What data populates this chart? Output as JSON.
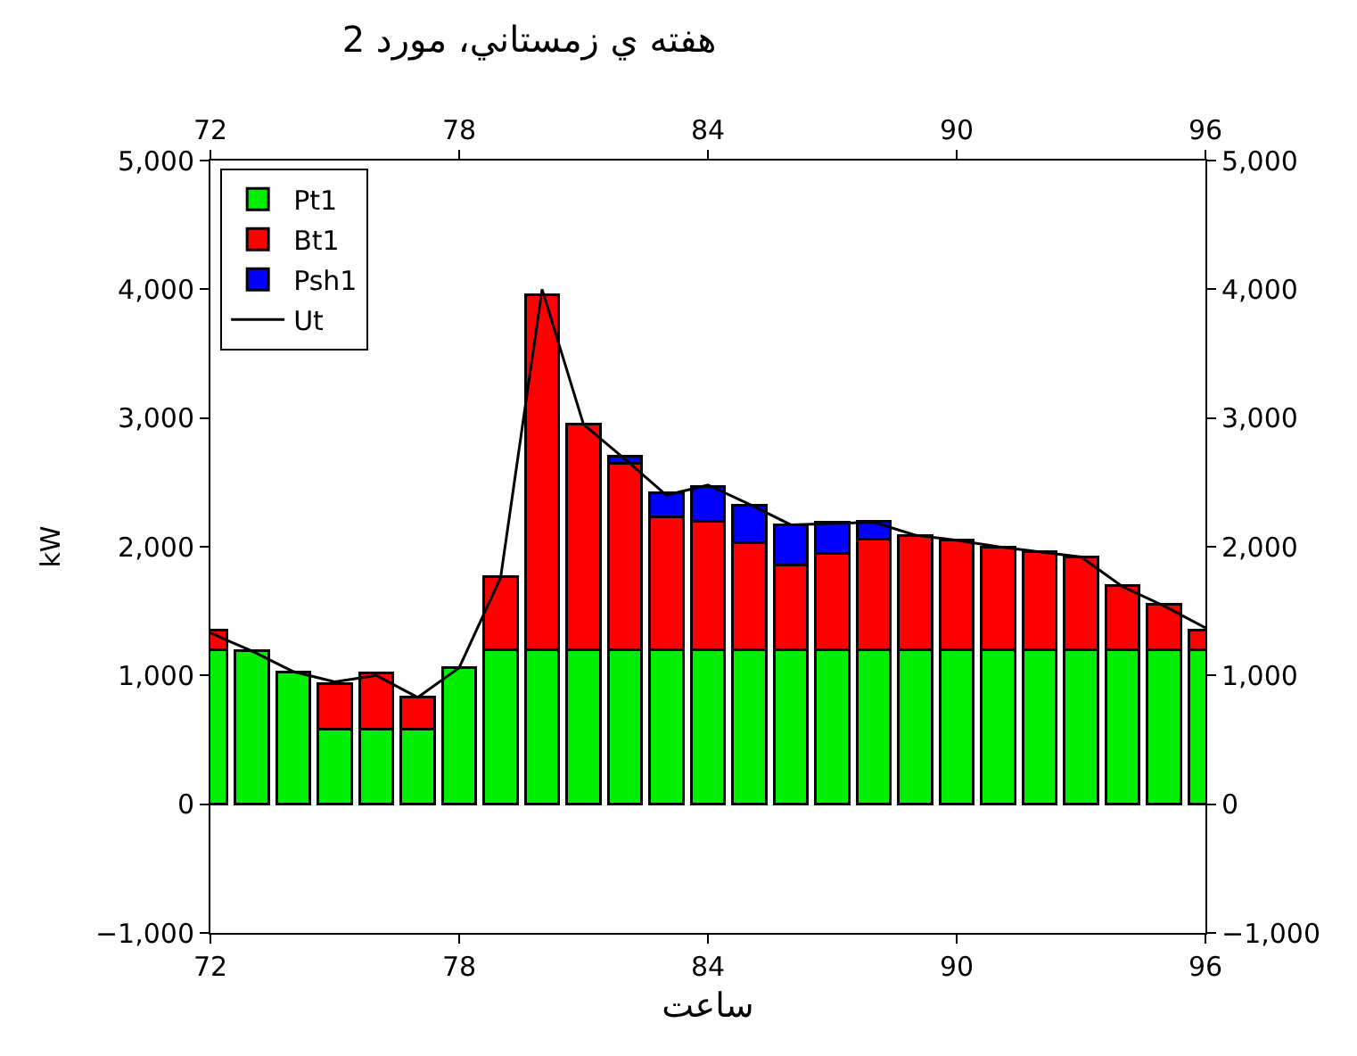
{
  "chart_data": {
    "type": "bar",
    "stacked": true,
    "title": "هفته ي زمستاني، مورد 2",
    "xlabel": "ساعت",
    "ylabel": "kW",
    "x": [
      72,
      73,
      74,
      75,
      76,
      77,
      78,
      79,
      80,
      81,
      82,
      83,
      84,
      85,
      86,
      87,
      88,
      89,
      90,
      91,
      92,
      93,
      94,
      95,
      96
    ],
    "series": [
      {
        "name": "Pt1",
        "color": "#00ee00",
        "values": [
          1200,
          1190,
          1030,
          580,
          580,
          580,
          1060,
          1200,
          1200,
          1200,
          1200,
          1200,
          1200,
          1200,
          1200,
          1200,
          1200,
          1200,
          1200,
          1200,
          1200,
          1200,
          1200,
          1200,
          1200
        ]
      },
      {
        "name": "Bt1",
        "color": "#ff0000",
        "values": [
          150,
          null,
          null,
          360,
          440,
          250,
          null,
          570,
          2760,
          1750,
          1450,
          1030,
          1000,
          830,
          660,
          750,
          860,
          890,
          850,
          800,
          760,
          720,
          500,
          350,
          150
        ]
      },
      {
        "name": "Psh1",
        "color": "#0000ff",
        "values": [
          null,
          null,
          null,
          null,
          null,
          null,
          null,
          null,
          null,
          null,
          50,
          190,
          270,
          290,
          310,
          240,
          140,
          null,
          null,
          null,
          null,
          null,
          null,
          null,
          null
        ]
      },
      {
        "name": "Ut",
        "type": "line",
        "color": "#000000",
        "marker": "none",
        "line_style": "solid",
        "values": [
          1330,
          1190,
          1030,
          950,
          1000,
          830,
          1060,
          1760,
          4000,
          2950,
          2680,
          2400,
          2480,
          2330,
          2170,
          2180,
          2190,
          2090,
          2050,
          2000,
          1960,
          1920,
          1690,
          1540,
          1370
        ]
      }
    ],
    "xlim": [
      72,
      96
    ],
    "xticks": [
      72,
      78,
      84,
      90,
      96
    ],
    "x2lim": [
      72,
      96
    ],
    "x2ticks": [
      72,
      78,
      84,
      90,
      96
    ],
    "ylim": [
      -1000,
      5000
    ],
    "yticks": [
      {
        "value": -1000,
        "label": "−1,000"
      },
      {
        "value": 0,
        "label": "0"
      },
      {
        "value": 1000,
        "label": "1,000"
      },
      {
        "value": 2000,
        "label": "2,000"
      },
      {
        "value": 3000,
        "label": "3,000"
      },
      {
        "value": 4000,
        "label": "4,000"
      },
      {
        "value": 5000,
        "label": "5,000"
      }
    ],
    "y2lim": [
      -1000,
      5000
    ],
    "y2ticks": [
      {
        "value": -1000,
        "label": "−1,000"
      },
      {
        "value": 0,
        "label": "0"
      },
      {
        "value": 1000,
        "label": "1,000"
      },
      {
        "value": 2000,
        "label": "2,000"
      },
      {
        "value": 3000,
        "label": "3,000"
      },
      {
        "value": 4000,
        "label": "4,000"
      },
      {
        "value": 5000,
        "label": "5,000"
      }
    ],
    "legend": "top left"
  }
}
